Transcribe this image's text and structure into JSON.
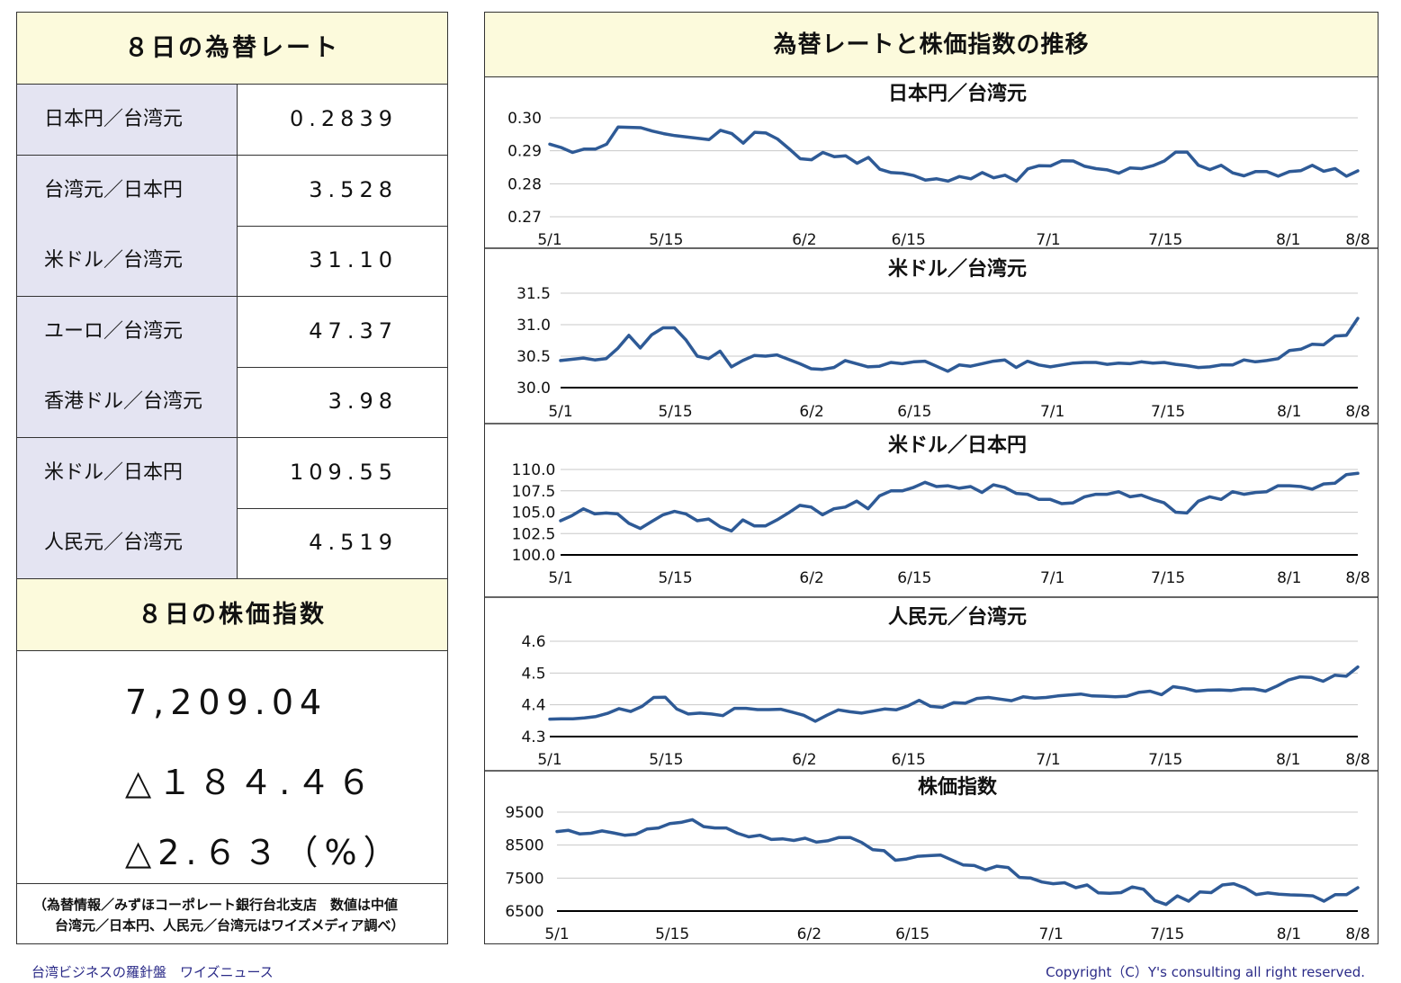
{
  "rates": {
    "title": "８日の為替レート",
    "rows": [
      {
        "label": "日本円／台湾元",
        "value": "0.2839"
      },
      {
        "label": "台湾元／日本円",
        "value": "3.528"
      },
      {
        "label": "米ドル／台湾元",
        "value": "31.10"
      },
      {
        "label": "ユーロ／台湾元",
        "value": "47.37"
      },
      {
        "label": "香港ドル／台湾元",
        "value": "3.98"
      },
      {
        "label": "米ドル／日本円",
        "value": "109.55"
      },
      {
        "label": "人民元／台湾元",
        "value": "4.519"
      }
    ]
  },
  "stock": {
    "title": "８日の株価指数",
    "index": "7,209.04",
    "change": "△１８４.４６",
    "percent": "△2.６３（%）"
  },
  "footnote": {
    "line1": "（為替情報／みずほコーポレート銀行台北支店　数値は中値",
    "line2": "台湾元／日本円、人民元／台湾元はワイズメディア調べ）"
  },
  "charts_title": "為替レートと株価指数の推移",
  "footer": {
    "left": "台湾ビジネスの羅針盤　ワイズニュース",
    "right": "Copyright（C）Y's consulting all right reserved."
  },
  "colors": {
    "line": "#2e5a96",
    "header_bg": "#fcfadc",
    "label_bg": "#e4e4f2",
    "grid": "#c8c8c8"
  },
  "chart_data": [
    {
      "type": "line",
      "title": "日本円／台湾元",
      "x_ticks": [
        "5/1",
        "5/15",
        "6/2",
        "6/15",
        "7/1",
        "7/15",
        "8/1",
        "8/8"
      ],
      "y_ticks": [
        "0.30",
        "0.29",
        "0.28",
        "0.27"
      ],
      "ylim": [
        0.27,
        0.3
      ],
      "values": [
        0.292,
        0.291,
        0.2895,
        0.2905,
        0.2905,
        0.292,
        0.2972,
        0.2971,
        0.297,
        0.296,
        0.2952,
        0.2946,
        0.2942,
        0.2938,
        0.2934,
        0.2962,
        0.2952,
        0.2923,
        0.2956,
        0.2954,
        0.2936,
        0.2907,
        0.2876,
        0.2873,
        0.2895,
        0.2882,
        0.2885,
        0.2862,
        0.288,
        0.2844,
        0.2834,
        0.2832,
        0.2825,
        0.2811,
        0.2815,
        0.2808,
        0.2822,
        0.2815,
        0.2834,
        0.2818,
        0.2826,
        0.2808,
        0.2845,
        0.2855,
        0.2854,
        0.287,
        0.2869,
        0.2853,
        0.2846,
        0.2842,
        0.2832,
        0.2848,
        0.2846,
        0.2855,
        0.2869,
        0.2896,
        0.2896,
        0.2856,
        0.2843,
        0.2856,
        0.2833,
        0.2824,
        0.2837,
        0.2837,
        0.2823,
        0.2837,
        0.284,
        0.2856,
        0.2838,
        0.2846,
        0.2823,
        0.2839
      ]
    },
    {
      "type": "line",
      "title": "米ドル／台湾元",
      "x_ticks": [
        "5/1",
        "5/15",
        "6/2",
        "6/15",
        "7/1",
        "7/15",
        "8/1",
        "8/8"
      ],
      "y_ticks": [
        "31.5",
        "31.0",
        "30.5",
        "30.0"
      ],
      "ylim": [
        30.0,
        31.5
      ],
      "values": [
        30.43,
        30.45,
        30.47,
        30.44,
        30.46,
        30.62,
        30.83,
        30.63,
        30.84,
        30.95,
        30.95,
        30.76,
        30.5,
        30.46,
        30.58,
        30.33,
        30.43,
        30.51,
        30.5,
        30.52,
        30.45,
        30.38,
        30.3,
        30.29,
        30.32,
        30.43,
        30.38,
        30.33,
        30.34,
        30.4,
        30.38,
        30.41,
        30.42,
        30.34,
        30.26,
        30.36,
        30.34,
        30.38,
        30.42,
        30.44,
        30.32,
        30.42,
        30.36,
        30.33,
        30.36,
        30.39,
        30.4,
        30.4,
        30.37,
        30.39,
        30.38,
        30.41,
        30.39,
        30.4,
        30.37,
        30.35,
        30.32,
        30.33,
        30.36,
        30.36,
        30.44,
        30.41,
        30.43,
        30.46,
        30.59,
        30.61,
        30.69,
        30.68,
        30.82,
        30.83,
        31.1
      ]
    },
    {
      "type": "line",
      "title": "米ドル／日本円",
      "x_ticks": [
        "5/1",
        "5/15",
        "6/2",
        "6/15",
        "7/1",
        "7/15",
        "8/1",
        "8/8"
      ],
      "y_ticks": [
        "110.0",
        "107.5",
        "105.0",
        "102.5",
        "100.0"
      ],
      "ylim": [
        100.0,
        110.0
      ],
      "values": [
        104.0,
        104.6,
        105.4,
        104.8,
        104.9,
        104.8,
        103.7,
        103.1,
        103.9,
        104.7,
        105.1,
        104.8,
        104.0,
        104.2,
        103.3,
        102.8,
        104.1,
        103.4,
        103.4,
        104.1,
        104.9,
        105.8,
        105.6,
        104.7,
        105.4,
        105.6,
        106.3,
        105.4,
        106.9,
        107.5,
        107.5,
        107.9,
        108.5,
        108.0,
        108.1,
        107.8,
        108.0,
        107.3,
        108.2,
        107.9,
        107.2,
        107.1,
        106.5,
        106.5,
        106.0,
        106.1,
        106.8,
        107.1,
        107.1,
        107.4,
        106.8,
        107.0,
        106.5,
        106.1,
        105.0,
        104.9,
        106.3,
        106.8,
        106.5,
        107.4,
        107.1,
        107.3,
        107.4,
        108.1,
        108.1,
        108.0,
        107.7,
        108.3,
        108.4,
        109.4,
        109.55
      ]
    },
    {
      "type": "line",
      "title": "人民元／台湾元",
      "x_ticks": [
        "5/1",
        "5/15",
        "6/2",
        "6/15",
        "7/1",
        "7/15",
        "8/1",
        "8/8"
      ],
      "y_ticks": [
        "4.6",
        "4.5",
        "4.4",
        "4.3"
      ],
      "ylim": [
        4.3,
        4.6
      ],
      "values": [
        4.355,
        4.356,
        4.356,
        4.359,
        4.363,
        4.373,
        4.388,
        4.379,
        4.395,
        4.423,
        4.424,
        4.387,
        4.371,
        4.374,
        4.371,
        4.366,
        4.389,
        4.389,
        4.385,
        4.385,
        4.386,
        4.377,
        4.367,
        4.348,
        4.367,
        4.384,
        4.378,
        4.374,
        4.38,
        4.387,
        4.384,
        4.396,
        4.414,
        4.395,
        4.392,
        4.407,
        4.405,
        4.42,
        4.423,
        4.418,
        4.413,
        4.425,
        4.421,
        4.423,
        4.428,
        4.431,
        4.434,
        4.428,
        4.427,
        4.425,
        4.427,
        4.439,
        4.443,
        4.432,
        4.457,
        4.452,
        4.443,
        4.446,
        4.447,
        4.445,
        4.45,
        4.45,
        4.443,
        4.459,
        4.478,
        4.488,
        4.486,
        4.474,
        4.493,
        4.49,
        4.519
      ]
    },
    {
      "type": "line",
      "title": "株価指数",
      "x_ticks": [
        "5/1",
        "5/15",
        "6/2",
        "6/15",
        "7/1",
        "7/15",
        "8/1",
        "8/8"
      ],
      "y_ticks": [
        "9500",
        "8500",
        "7500",
        "6500"
      ],
      "ylim": [
        6500,
        9500
      ],
      "values": [
        8910,
        8950,
        8840,
        8860,
        8930,
        8870,
        8800,
        8830,
        8990,
        9020,
        9150,
        9190,
        9270,
        9060,
        9020,
        9020,
        8860,
        8750,
        8800,
        8670,
        8690,
        8640,
        8710,
        8590,
        8630,
        8730,
        8730,
        8580,
        8360,
        8330,
        8040,
        8080,
        8160,
        8180,
        8200,
        8050,
        7900,
        7880,
        7750,
        7860,
        7820,
        7520,
        7500,
        7380,
        7330,
        7360,
        7210,
        7290,
        7050,
        7040,
        7060,
        7230,
        7160,
        6820,
        6700,
        6960,
        6800,
        7080,
        7060,
        7290,
        7330,
        7200,
        7000,
        7050,
        7010,
        6990,
        6980,
        6960,
        6800,
        7000,
        7000,
        7209
      ]
    }
  ]
}
